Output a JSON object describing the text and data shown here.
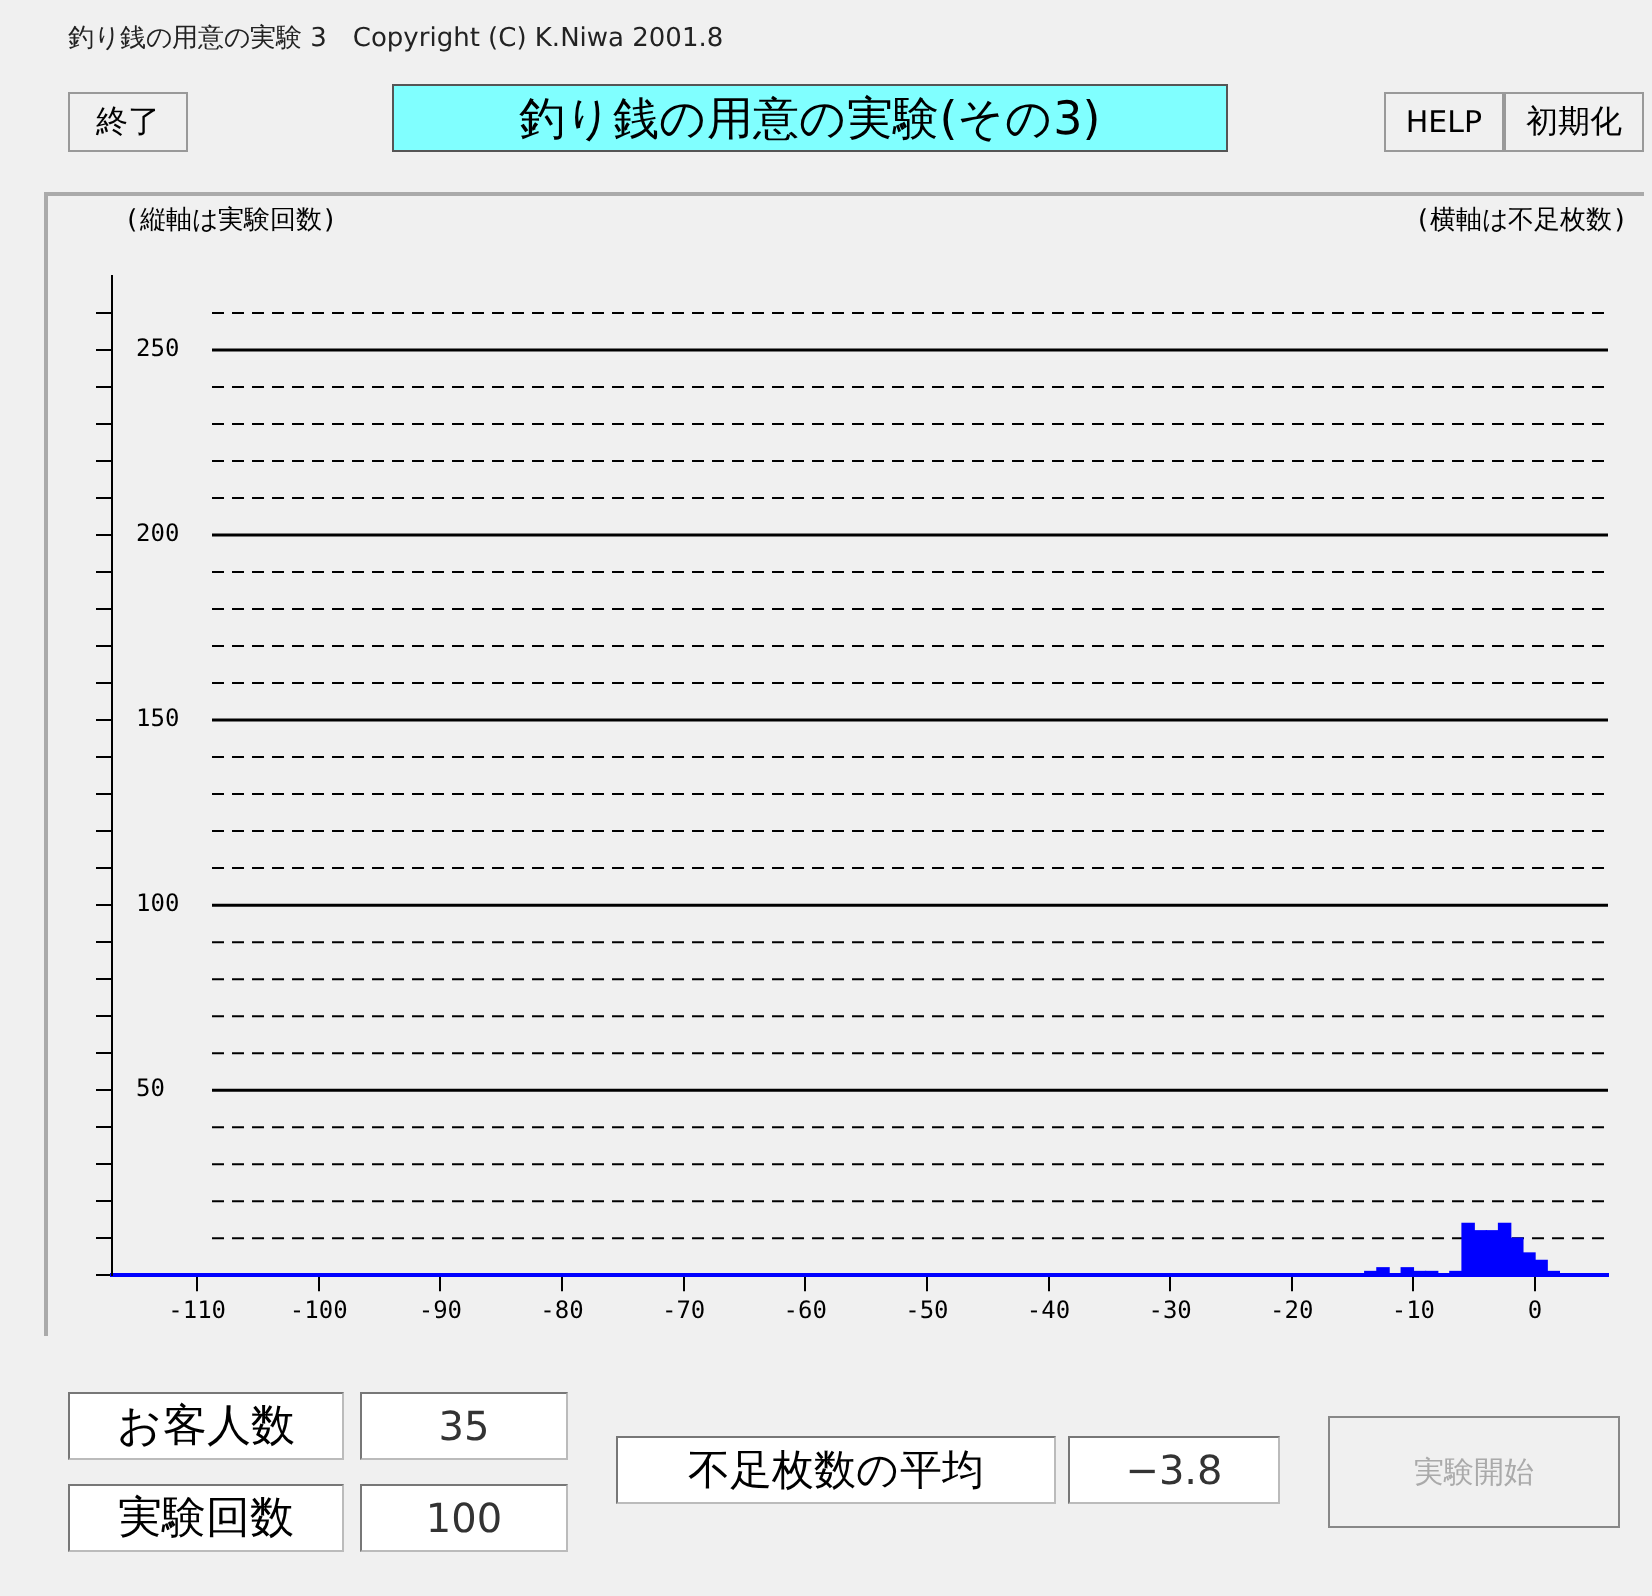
{
  "chart_data": {
    "type": "histogram",
    "title": "釣り銭の用意の実験(その3)",
    "xlabel": "(横軸は不足枚数)",
    "ylabel": "(縦軸は実験回数)",
    "bins": [
      -14,
      -13,
      -12,
      -11,
      -10,
      -9,
      -8,
      -7,
      -6,
      -5,
      -4,
      -3,
      -2,
      -1,
      0,
      1,
      2
    ],
    "values": [
      1,
      2,
      0,
      2,
      1,
      1,
      0,
      1,
      14,
      12,
      12,
      14,
      10,
      6,
      4,
      1
    ],
    "color": "#0000ff",
    "xlim": [
      -117,
      6
    ],
    "xticks": [
      -110,
      -100,
      -90,
      -80,
      -70,
      -60,
      -50,
      -40,
      -30,
      -20,
      -10,
      0
    ],
    "ylim": [
      0,
      270
    ],
    "yticks": [
      {
        "value": 0,
        "label": null
      },
      {
        "value": 10,
        "label": null
      },
      {
        "value": 20,
        "label": null
      },
      {
        "value": 30,
        "label": null
      },
      {
        "value": 40,
        "label": null
      },
      50,
      {
        "value": 60,
        "label": null
      },
      {
        "value": 70,
        "label": null
      },
      {
        "value": 80,
        "label": null
      },
      {
        "value": 90,
        "label": null
      },
      100,
      {
        "value": 110,
        "label": null
      },
      {
        "value": 120,
        "label": null
      },
      {
        "value": 130,
        "label": null
      },
      {
        "value": 140,
        "label": null
      },
      150,
      {
        "value": 160,
        "label": null
      },
      {
        "value": 170,
        "label": null
      },
      {
        "value": 180,
        "label": null
      },
      {
        "value": 190,
        "label": null
      },
      200,
      {
        "value": 210,
        "label": null
      },
      {
        "value": 220,
        "label": null
      },
      {
        "value": 230,
        "label": null
      },
      {
        "value": 240,
        "label": null
      },
      250,
      {
        "value": 260,
        "label": null
      }
    ],
    "grid": "y",
    "legend": false,
    "annotations": [
      "釣り銭の用意の実験 3　Copyright (C) K.Niwa 2001.8",
      "終了",
      "HELP",
      "初期化",
      "お客人数",
      "35",
      "実験回数",
      "100",
      "不足枚数の平均",
      "−3.8",
      "実験開始"
    ]
  }
}
